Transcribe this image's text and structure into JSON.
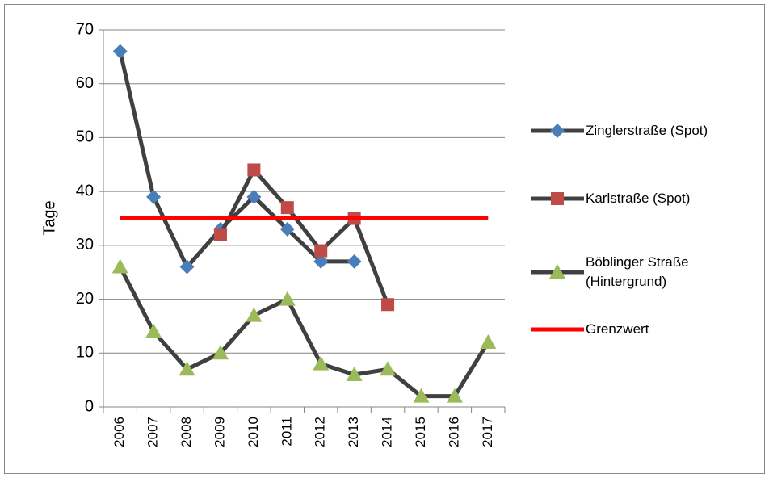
{
  "chart_data": {
    "type": "line",
    "y_label": "Tage",
    "categories": [
      "2006",
      "2007",
      "2008",
      "2009",
      "2010",
      "2011",
      "2012",
      "2013",
      "2014",
      "2015",
      "2016",
      "2017"
    ],
    "series": [
      {
        "name": "Zinglerstraße (Spot)",
        "color": "#4a7ebb",
        "line_color": "#404040",
        "marker": "diamond",
        "values": [
          66,
          39,
          26,
          33,
          39,
          33,
          27,
          27,
          null,
          null,
          null,
          null
        ]
      },
      {
        "name": "Karlstraße (Spot)",
        "color": "#be4b48",
        "line_color": "#404040",
        "marker": "square",
        "values": [
          null,
          null,
          null,
          32,
          44,
          37,
          29,
          35,
          19,
          null,
          null,
          null
        ]
      },
      {
        "name": "Böblinger Straße (Hintergrund)",
        "color": "#9bbb59",
        "line_color": "#404040",
        "marker": "triangle",
        "values": [
          26,
          14,
          7,
          10,
          17,
          20,
          8,
          6,
          7,
          2,
          2,
          12
        ]
      },
      {
        "name": "Grenzwert",
        "color": "#ff0000",
        "line_color": "#ff0000",
        "marker": "none",
        "values": [
          35,
          35,
          35,
          35,
          35,
          35,
          35,
          35,
          35,
          35,
          35,
          35
        ]
      }
    ],
    "ylim": [
      0,
      70
    ],
    "yticks": [
      0,
      10,
      20,
      30,
      40,
      50,
      60,
      70
    ],
    "grid": true,
    "legend": "right"
  }
}
